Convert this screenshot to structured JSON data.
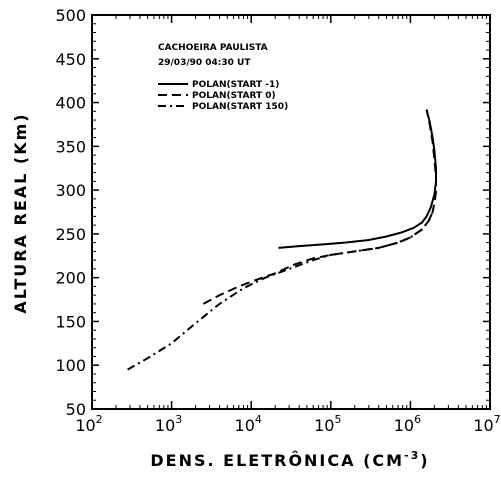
{
  "chart_data": {
    "type": "line",
    "title": "CACHOEIRA PAULISTA",
    "subtitle": "29/03/90  04:30 UT",
    "xlabel": "DENS. ELETRÔNICA (CM",
    "xlabel_superscript": "-3",
    "xlabel_close": ")",
    "ylabel": "ALTURA REAL (Km)",
    "xscale": "log",
    "xlim": [
      100,
      10000000
    ],
    "ylim": [
      50,
      500
    ],
    "x_ticks": [
      {
        "value": 100,
        "base": "10",
        "exp": "2"
      },
      {
        "value": 1000,
        "base": "10",
        "exp": "3"
      },
      {
        "value": 10000,
        "base": "10",
        "exp": "4"
      },
      {
        "value": 100000,
        "base": "10",
        "exp": "5"
      },
      {
        "value": 1000000,
        "base": "10",
        "exp": "6"
      },
      {
        "value": 10000000,
        "base": "10",
        "exp": "7"
      }
    ],
    "y_ticks": [
      "50",
      "100",
      "150",
      "200",
      "250",
      "300",
      "350",
      "400",
      "450",
      "500"
    ],
    "grid": false,
    "legend_position": "top-left",
    "series": [
      {
        "name": "POLAN(START -1)",
        "style": "solid",
        "x": [
          22000,
          40000,
          80000,
          150000,
          300000,
          500000,
          800000,
          1100000,
          1400000,
          1600000,
          1800000,
          2000000,
          2100000,
          2100000,
          2000000,
          1900000,
          1750000,
          1600000
        ],
        "y": [
          234,
          236,
          238,
          240,
          243,
          247,
          252,
          257,
          263,
          270,
          280,
          295,
          310,
          325,
          345,
          360,
          378,
          392
        ]
      },
      {
        "name": "POLAN(START 0)",
        "style": "dashed",
        "x": [
          2500,
          4000,
          7000,
          12000,
          20000,
          35000,
          60000,
          100000,
          200000,
          400000,
          700000,
          1000000,
          1400000,
          1700000,
          1900000,
          2000000,
          2100000,
          2100000,
          2000000,
          1900000,
          1750000,
          1600000
        ],
        "y": [
          170,
          180,
          190,
          198,
          205,
          215,
          222,
          226,
          230,
          234,
          240,
          246,
          255,
          265,
          275,
          285,
          298,
          315,
          335,
          355,
          375,
          392
        ]
      },
      {
        "name": "POLAN(START 150)",
        "style": "dash-dot",
        "x": [
          280,
          500,
          1000,
          2000,
          4000,
          8000,
          15000,
          30000,
          60000,
          100000,
          200000,
          400000,
          700000,
          1000000,
          1400000,
          1700000,
          1900000
        ],
        "y": [
          95,
          108,
          125,
          148,
          170,
          188,
          200,
          210,
          220,
          226,
          230,
          234,
          240,
          246,
          255,
          265,
          275
        ]
      }
    ]
  }
}
